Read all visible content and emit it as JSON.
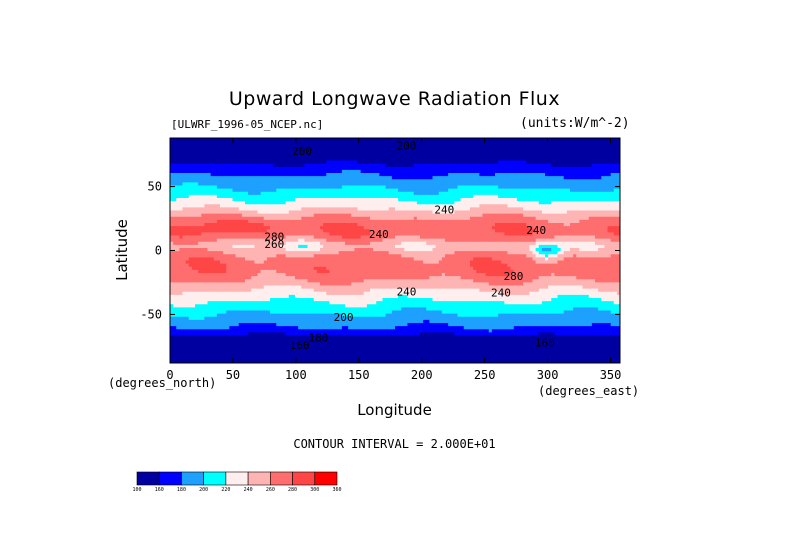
{
  "title": "Upward Longwave Radiation Flux",
  "file_label": "[ULWRF_1996-05_NCEP.nc]",
  "units_label": "(units:W/m^-2)",
  "chart_data": {
    "type": "heatmap",
    "variable": "Upward Longwave Radiation Flux",
    "xlabel": "Longitude",
    "ylabel": "Latitude",
    "x_unit_label": "(degrees_east)",
    "y_unit_label": "(degrees_north)",
    "xlim": [
      0,
      357.5
    ],
    "ylim": [
      -88,
      88
    ],
    "x_ticks": [
      0,
      50,
      100,
      150,
      200,
      250,
      300,
      350
    ],
    "y_ticks": [
      -50,
      0,
      50
    ],
    "contour_interval_text": "CONTOUR INTERVAL = 2.000E+01",
    "colorbar": {
      "levels": [
        100,
        160,
        180,
        200,
        220,
        240,
        260,
        280,
        300,
        360
      ],
      "colors": [
        "#0000a0",
        "#0000ff",
        "#1ea0ff",
        "#00ffff",
        "#ffeeee",
        "#ffb4b4",
        "#ff6e6e",
        "#ff4646",
        "#ff0000"
      ]
    },
    "contour_labels": [
      {
        "text": "200",
        "lon": 97,
        "lat": 78
      },
      {
        "text": "200",
        "lon": 180,
        "lat": 82
      },
      {
        "text": "240",
        "lon": 210,
        "lat": 32
      },
      {
        "text": "280",
        "lon": 75,
        "lat": 11
      },
      {
        "text": "260",
        "lon": 75,
        "lat": 5
      },
      {
        "text": "240",
        "lon": 158,
        "lat": 13
      },
      {
        "text": "240",
        "lon": 283,
        "lat": 16
      },
      {
        "text": "280",
        "lon": 265,
        "lat": -20
      },
      {
        "text": "240",
        "lon": 180,
        "lat": -32
      },
      {
        "text": "240",
        "lon": 255,
        "lat": -33
      },
      {
        "text": "200",
        "lon": 130,
        "lat": -52
      },
      {
        "text": "180",
        "lon": 110,
        "lat": -68
      },
      {
        "text": "160",
        "lon": 95,
        "lat": -74
      },
      {
        "text": "160",
        "lon": 290,
        "lat": -72
      }
    ]
  }
}
